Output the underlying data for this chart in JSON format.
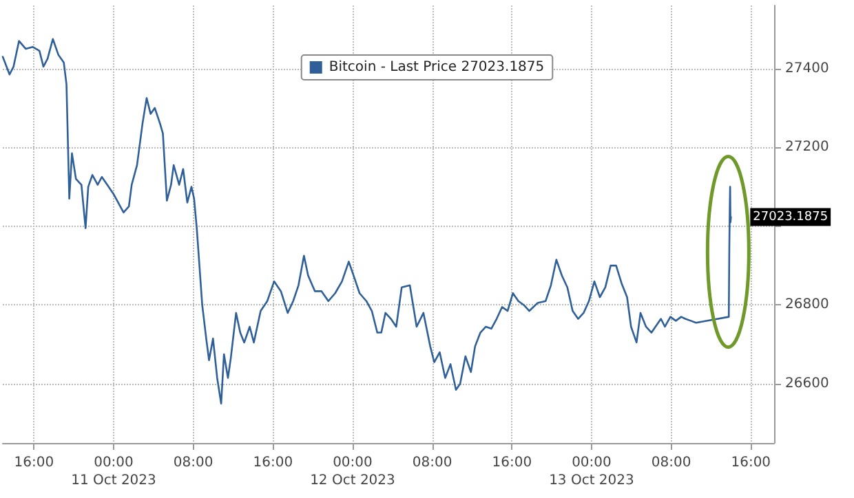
{
  "chart_data": {
    "type": "line",
    "x": [
      "2023-10-10T12:52",
      "2023-10-10T13:33",
      "2023-10-10T13:57",
      "2023-10-10T14:30",
      "2023-10-10T15:11",
      "2023-10-10T15:52",
      "2023-10-10T16:33",
      "2023-10-10T16:57",
      "2023-10-10T17:22",
      "2023-10-10T17:54",
      "2023-10-10T18:27",
      "2023-10-10T19:00",
      "2023-10-10T19:16",
      "2023-10-10T19:33",
      "2023-10-10T19:49",
      "2023-10-10T20:13",
      "2023-10-10T20:46",
      "2023-10-10T21:11",
      "2023-10-10T21:27",
      "2023-10-10T21:52",
      "2023-10-10T22:24",
      "2023-10-10T22:49",
      "2023-10-10T23:22",
      "2023-10-11T00:02",
      "2023-10-11T01:00",
      "2023-10-11T01:32",
      "2023-10-11T01:49",
      "2023-10-11T02:21",
      "2023-10-11T02:54",
      "2023-10-11T03:19",
      "2023-10-11T03:43",
      "2023-10-11T04:08",
      "2023-10-11T04:40",
      "2023-10-11T04:57",
      "2023-10-11T05:21",
      "2023-10-11T05:46",
      "2023-10-11T06:02",
      "2023-10-11T06:35",
      "2023-10-11T06:59",
      "2023-10-11T07:24",
      "2023-10-11T07:49",
      "2023-10-11T08:05",
      "2023-10-11T08:21",
      "2023-10-11T08:38",
      "2023-10-11T08:54",
      "2023-10-11T09:18",
      "2023-10-11T09:35",
      "2023-10-11T09:59",
      "2023-10-11T10:24",
      "2023-10-11T10:48",
      "2023-10-11T11:05",
      "2023-10-11T11:29",
      "2023-10-11T11:46",
      "2023-10-11T12:18",
      "2023-10-11T12:43",
      "2023-10-11T13:07",
      "2023-10-11T13:40",
      "2023-10-11T14:05",
      "2023-10-11T14:46",
      "2023-10-11T15:26",
      "2023-10-11T16:07",
      "2023-10-11T16:48",
      "2023-10-11T17:29",
      "2023-10-11T18:02",
      "2023-10-11T18:34",
      "2023-10-11T19:07",
      "2023-10-11T19:32",
      "2023-10-11T20:13",
      "2023-10-11T20:53",
      "2023-10-11T21:34",
      "2023-10-11T22:15",
      "2023-10-11T22:56",
      "2023-10-11T23:37",
      "2023-10-12T00:10",
      "2023-10-12T00:42",
      "2023-10-12T01:23",
      "2023-10-12T01:56",
      "2023-10-12T02:29",
      "2023-10-12T02:53",
      "2023-10-12T03:18",
      "2023-10-12T03:51",
      "2023-10-12T04:23",
      "2023-10-12T04:56",
      "2023-10-12T05:45",
      "2023-10-12T06:26",
      "2023-10-12T07:07",
      "2023-10-12T07:48",
      "2023-10-12T08:12",
      "2023-10-12T08:45",
      "2023-10-12T09:18",
      "2023-10-12T09:50",
      "2023-10-12T10:23",
      "2023-10-12T10:48",
      "2023-10-12T11:20",
      "2023-10-12T11:53",
      "2023-10-12T12:18",
      "2023-10-12T12:50",
      "2023-10-12T13:23",
      "2023-10-12T13:56",
      "2023-10-12T14:28",
      "2023-10-12T15:01",
      "2023-10-12T15:34",
      "2023-10-12T16:06",
      "2023-10-12T16:39",
      "2023-10-12T17:12",
      "2023-10-12T17:45",
      "2023-10-12T18:34",
      "2023-10-12T19:23",
      "2023-10-12T19:55",
      "2023-10-12T20:28",
      "2023-10-12T21:01",
      "2023-10-12T21:34",
      "2023-10-12T22:06",
      "2023-10-12T22:39",
      "2023-10-12T23:12",
      "2023-10-12T23:44",
      "2023-10-13T00:17",
      "2023-10-13T00:50",
      "2023-10-13T01:23",
      "2023-10-13T01:55",
      "2023-10-13T02:28",
      "2023-10-13T03:01",
      "2023-10-13T03:34",
      "2023-10-13T03:58",
      "2023-10-13T04:31",
      "2023-10-13T04:55",
      "2023-10-13T05:28",
      "2023-10-13T06:01",
      "2023-10-13T06:25",
      "2023-10-13T06:58",
      "2023-10-13T07:22",
      "2023-10-13T07:55",
      "2023-10-13T08:28",
      "2023-10-13T09:00",
      "2023-10-13T09:25",
      "2023-10-13T09:58",
      "2023-10-13T10:30",
      "2023-10-13T13:47",
      "2023-10-13T13:50",
      "2023-10-13T13:53",
      "2023-10-13T13:55",
      "2023-10-13T13:57",
      "2023-10-13T14:00"
    ],
    "series": [
      {
        "name": "Bitcoin - Last Price 27023.1875",
        "color": "#2f5f98",
        "values": [
          27430,
          27385,
          27405,
          27470,
          27450,
          27455,
          27445,
          27405,
          27425,
          27475,
          27435,
          27415,
          27360,
          27070,
          27185,
          27120,
          27105,
          26995,
          27100,
          27130,
          27105,
          27125,
          27105,
          27080,
          27035,
          27050,
          27105,
          27155,
          27260,
          27325,
          27285,
          27300,
          27260,
          27235,
          27065,
          27105,
          27155,
          27105,
          27145,
          27060,
          27100,
          27070,
          26995,
          26895,
          26800,
          26715,
          26660,
          26715,
          26615,
          26550,
          26675,
          26615,
          26665,
          26780,
          26730,
          26705,
          26745,
          26705,
          26785,
          26810,
          26860,
          26835,
          26780,
          26810,
          26850,
          26925,
          26875,
          26835,
          26835,
          26810,
          26830,
          26860,
          26910,
          26870,
          26830,
          26810,
          26785,
          26730,
          26730,
          26780,
          26765,
          26745,
          26845,
          26850,
          26745,
          26780,
          26695,
          26655,
          26680,
          26615,
          26650,
          26585,
          26600,
          26670,
          26630,
          26695,
          26730,
          26745,
          26740,
          26765,
          26795,
          26785,
          26830,
          26810,
          26800,
          26785,
          26805,
          26810,
          26850,
          26915,
          26875,
          26845,
          26785,
          26765,
          26780,
          26810,
          26860,
          26820,
          26845,
          26900,
          26900,
          26855,
          26820,
          26745,
          26705,
          26780,
          26745,
          26730,
          26745,
          26765,
          26745,
          26770,
          26760,
          26770,
          26765,
          26760,
          26755,
          26770,
          26940,
          27050,
          27100,
          27010,
          27023.1875
        ]
      }
    ],
    "xlim": [
      "2023-10-10T12:52",
      "2023-10-13T18:20"
    ],
    "xticks": [
      {
        "value": "2023-10-10T16:00",
        "label": "16:00"
      },
      {
        "value": "2023-10-11T00:00",
        "label": "00:00\n11 Oct 2023"
      },
      {
        "value": "2023-10-11T08:00",
        "label": "08:00"
      },
      {
        "value": "2023-10-11T16:00",
        "label": "16:00"
      },
      {
        "value": "2023-10-12T00:00",
        "label": "00:00\n12 Oct 2023"
      },
      {
        "value": "2023-10-12T08:00",
        "label": "08:00"
      },
      {
        "value": "2023-10-12T16:00",
        "label": "16:00"
      },
      {
        "value": "2023-10-13T00:00",
        "label": "00:00\n13 Oct 2023"
      },
      {
        "value": "2023-10-13T08:00",
        "label": "08:00"
      },
      {
        "value": "2023-10-13T16:00",
        "label": "16:00"
      }
    ],
    "ylim": [
      26450,
      27560
    ],
    "yticks": [
      26600,
      26800,
      {
        "value": 27000,
        "label": null
      },
      27200,
      27400
    ],
    "annotations": [
      {
        "text": "27023.1875",
        "x": "2023-10-13T14:00",
        "y": 27023.1875
      }
    ],
    "grid": true,
    "legend": "top",
    "marker": "none",
    "line_style": "solid"
  }
}
